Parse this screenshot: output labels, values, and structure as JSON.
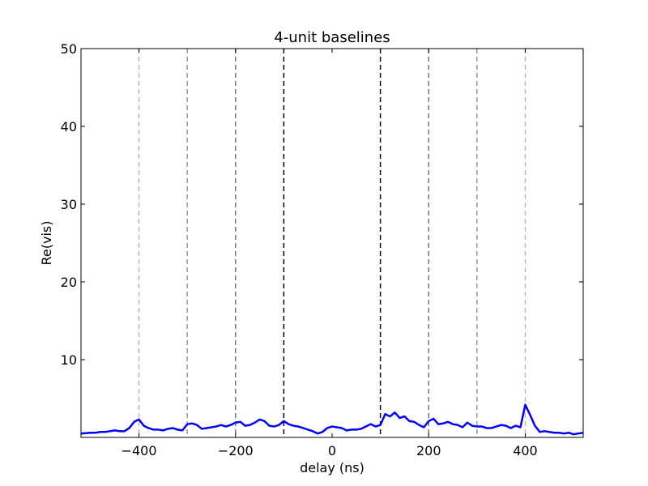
{
  "chart_data": {
    "type": "line",
    "title": "4-unit baselines",
    "xlabel": "delay (ns)",
    "ylabel": "Re(vis)",
    "xlim": [
      -520,
      520
    ],
    "ylim": [
      0,
      50
    ],
    "xticks": [
      -400,
      -200,
      0,
      200,
      400
    ],
    "xtick_labels": [
      "−400",
      "−200",
      "0",
      "200",
      "400"
    ],
    "yticks": [
      10,
      20,
      30,
      40,
      50
    ],
    "ytick_labels": [
      "10",
      "20",
      "30",
      "40",
      "50"
    ],
    "grid": false,
    "line_color": "#0000ff",
    "vlines": [
      {
        "x": -400,
        "color": "#bbbbbb",
        "style": "dashed"
      },
      {
        "x": -300,
        "color": "#999999",
        "style": "dashed"
      },
      {
        "x": -200,
        "color": "#777777",
        "style": "dashed"
      },
      {
        "x": -100,
        "color": "#000000",
        "style": "dashed"
      },
      {
        "x": 100,
        "color": "#000000",
        "style": "dashed"
      },
      {
        "x": 200,
        "color": "#777777",
        "style": "dashed"
      },
      {
        "x": 300,
        "color": "#999999",
        "style": "dashed"
      },
      {
        "x": 400,
        "color": "#bbbbbb",
        "style": "dashed"
      }
    ],
    "series": [
      {
        "x": [
          -520,
          -500,
          -490,
          -480,
          -470,
          -460,
          -450,
          -440,
          -430,
          -420,
          -410,
          -400,
          -390,
          -380,
          -370,
          -360,
          -350,
          -340,
          -330,
          -320,
          -310,
          -300,
          -290,
          -280,
          -270,
          -260,
          -250,
          -240,
          -230,
          -220,
          -210,
          -200,
          -190,
          -180,
          -170,
          -160,
          -150,
          -140,
          -130,
          -120,
          -110,
          -100,
          -90,
          -80,
          -70,
          -60,
          -50,
          -40,
          -30,
          -20,
          -10,
          0,
          10,
          20,
          30,
          40,
          50,
          60,
          70,
          80,
          90,
          100,
          110,
          120,
          130,
          140,
          150,
          160,
          170,
          180,
          190,
          200,
          210,
          220,
          230,
          240,
          250,
          260,
          270,
          280,
          290,
          300,
          310,
          320,
          330,
          340,
          350,
          360,
          370,
          380,
          390,
          400,
          410,
          420,
          430,
          440,
          450,
          460,
          470,
          480,
          490,
          500,
          510,
          520
        ],
        "values": [
          0.5,
          0.6,
          0.6,
          0.7,
          0.7,
          0.8,
          0.9,
          0.8,
          0.8,
          1.2,
          2.0,
          2.3,
          1.5,
          1.2,
          1.0,
          1.0,
          0.9,
          1.1,
          1.2,
          1.0,
          0.9,
          1.7,
          1.8,
          1.6,
          1.1,
          1.2,
          1.3,
          1.4,
          1.6,
          1.4,
          1.6,
          1.9,
          2.0,
          1.5,
          1.6,
          1.9,
          2.3,
          2.1,
          1.5,
          1.4,
          1.6,
          2.1,
          1.7,
          1.5,
          1.4,
          1.2,
          1.0,
          0.8,
          0.5,
          0.7,
          1.2,
          1.4,
          1.3,
          1.2,
          0.9,
          1.0,
          1.0,
          1.1,
          1.4,
          1.7,
          1.4,
          1.6,
          3.0,
          2.7,
          3.2,
          2.5,
          2.7,
          2.1,
          2.0,
          1.6,
          1.3,
          2.1,
          2.4,
          1.7,
          1.8,
          2.0,
          1.7,
          1.6,
          1.3,
          1.9,
          1.5,
          1.4,
          1.4,
          1.2,
          1.2,
          1.4,
          1.6,
          1.5,
          1.2,
          1.5,
          1.3,
          4.2,
          2.9,
          1.5,
          0.7,
          0.8,
          0.7,
          0.6,
          0.6,
          0.5,
          0.6,
          0.4,
          0.5,
          0.6
        ]
      }
    ]
  }
}
